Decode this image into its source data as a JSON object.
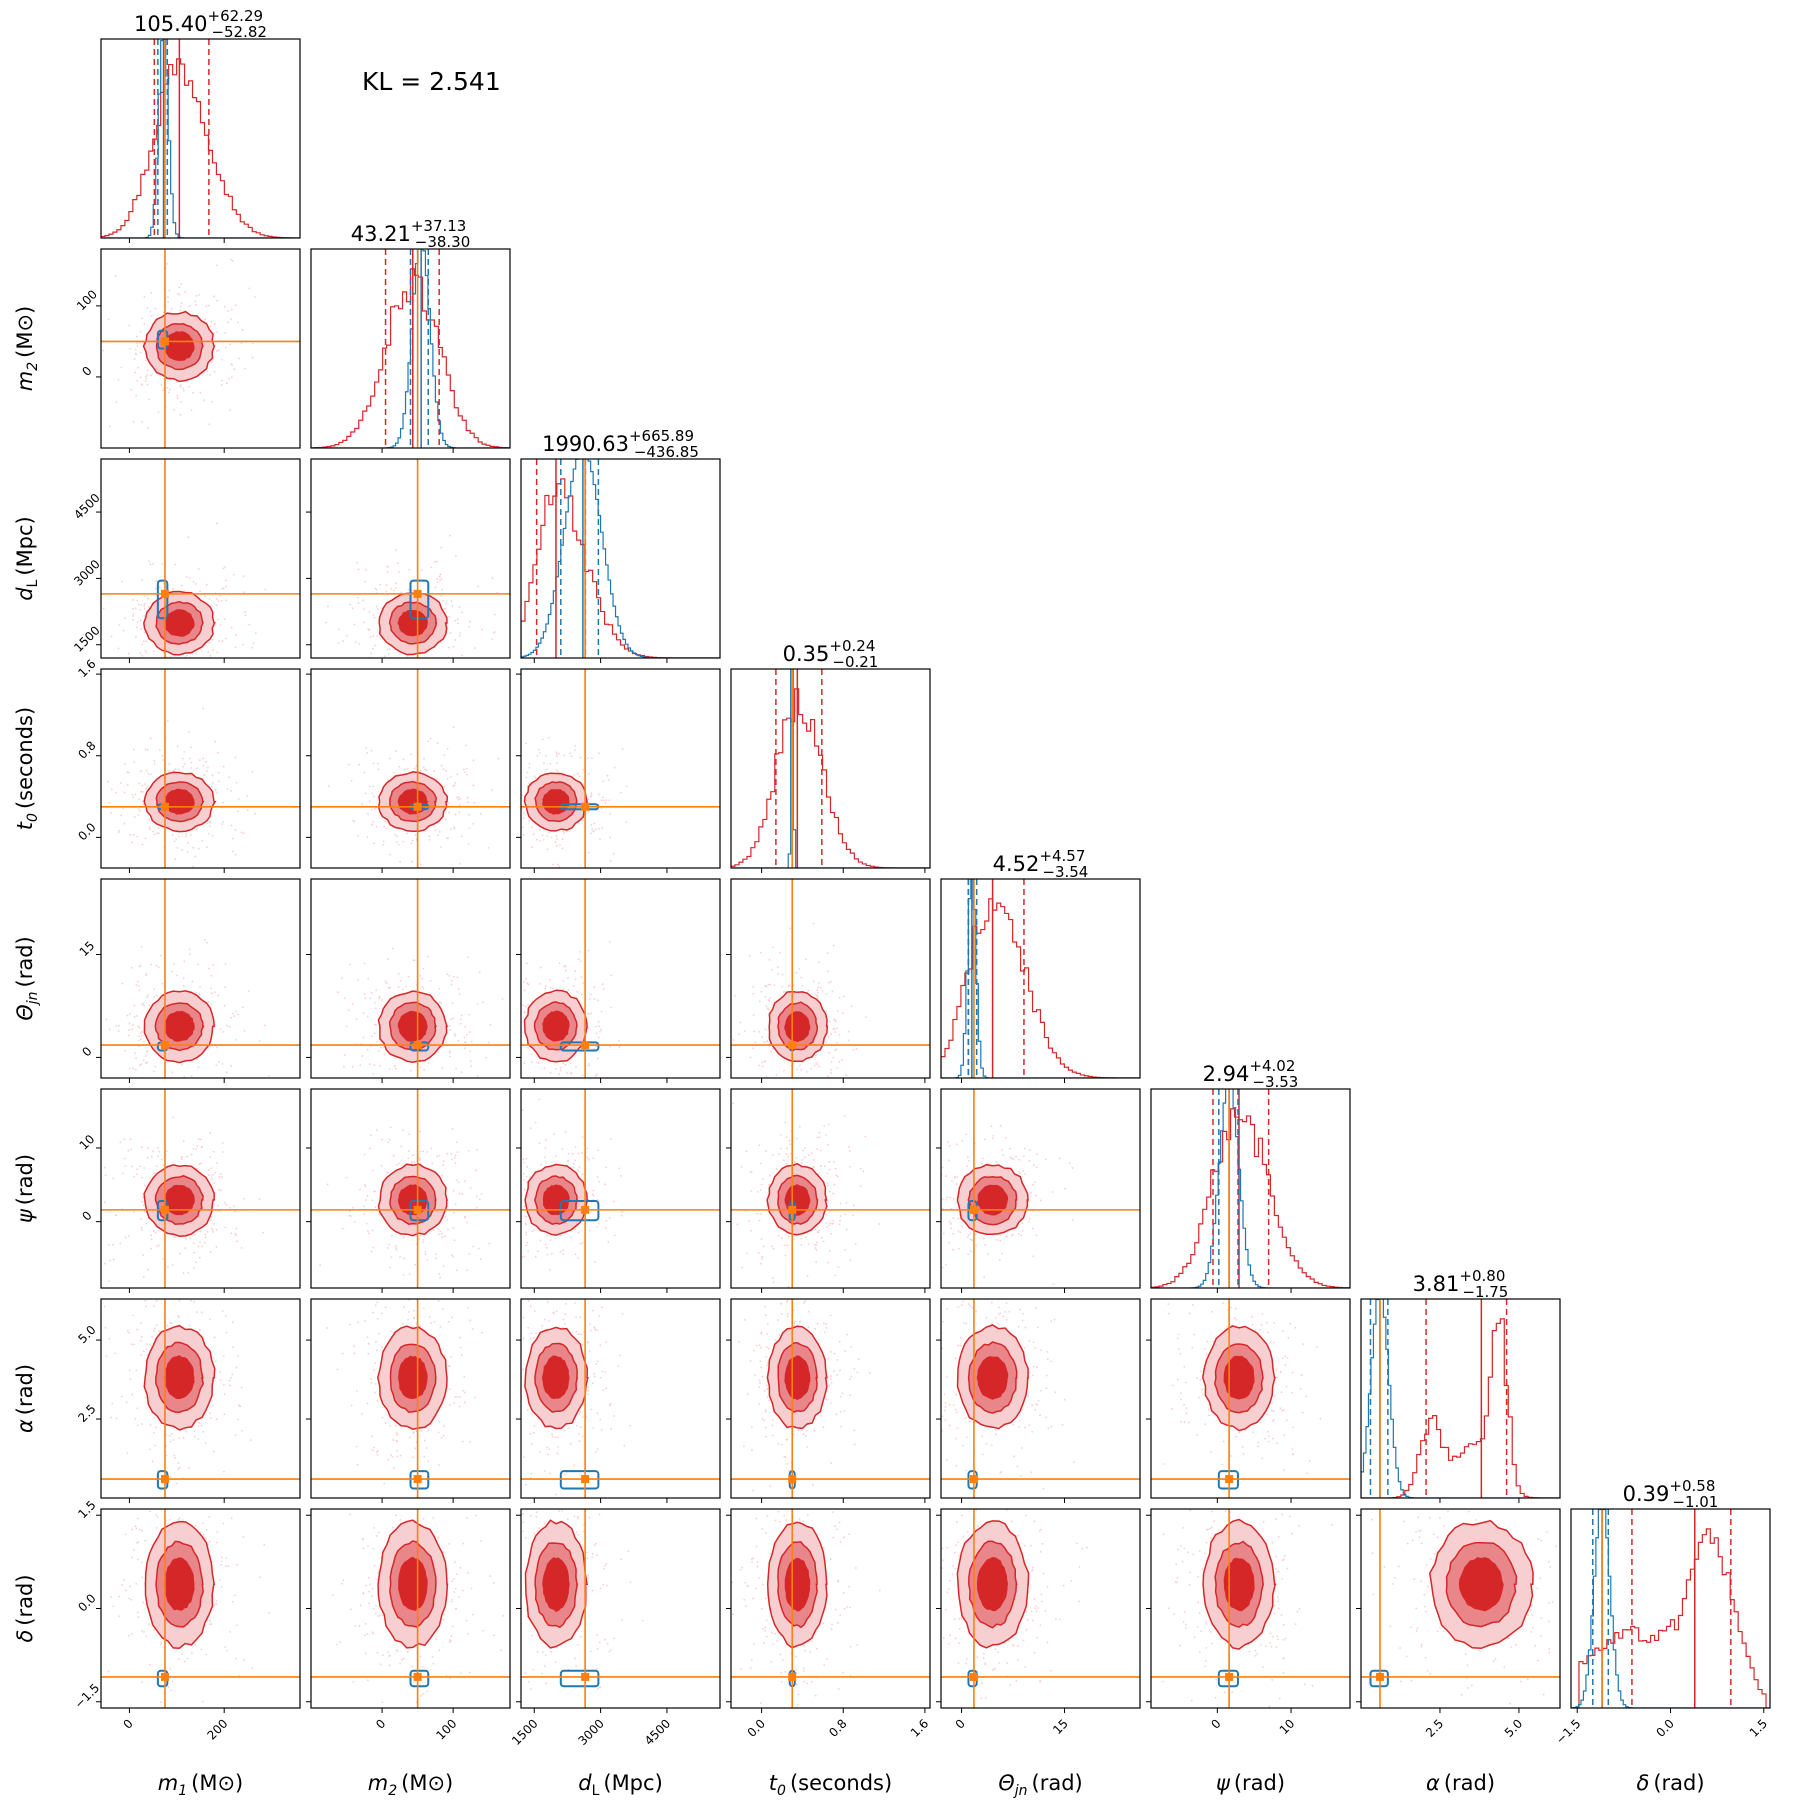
{
  "kl_text": "KL = 2.541",
  "colors": {
    "red": "#d62728",
    "red_mid": "#e8868a",
    "red_light": "#f7cfd1",
    "blue": "#1f77b4",
    "orange": "#ff7f0e"
  },
  "chart_data": {
    "type": "corner",
    "parameters": [
      {
        "key": "m1",
        "label_base": "m",
        "label_sub": "1",
        "unit": "(M⊙)",
        "range": [
          -60,
          360
        ],
        "ticks": [
          0,
          200
        ],
        "tick_labels": [
          "0",
          "200"
        ],
        "truth": 75,
        "title": {
          "median": "105.40",
          "plus": "+62.29",
          "minus": "−52.82"
        },
        "quantiles": {
          "red": [
            52.58,
            105.4,
            167.69
          ],
          "blue": [
            60,
            72,
            80
          ]
        }
      },
      {
        "key": "m2",
        "label_base": "m",
        "label_sub": "2",
        "unit": "(M⊙)",
        "range": [
          -100,
          180
        ],
        "ticks": [
          0,
          100
        ],
        "tick_labels": [
          "0",
          "100"
        ],
        "truth": 50,
        "title": {
          "median": "43.21",
          "plus": "+37.13",
          "minus": "−38.30"
        },
        "quantiles": {
          "red": [
            4.91,
            43.21,
            80.34
          ],
          "blue": [
            40,
            55,
            65
          ]
        }
      },
      {
        "key": "dL",
        "label_base": "d",
        "label_sub": "L",
        "unit": "(Mpc)",
        "range": [
          1200,
          5700
        ],
        "ticks": [
          1500,
          3000,
          4500
        ],
        "tick_labels": [
          "1500",
          "3000",
          "4500"
        ],
        "truth": 2650,
        "title": {
          "median": "1990.63",
          "plus": "+665.89",
          "minus": "−436.85"
        },
        "quantiles": {
          "red": [
            1553.78,
            1990.63,
            2656.52
          ],
          "blue": [
            2100,
            2600,
            2950
          ]
        }
      },
      {
        "key": "t0",
        "label_base": "t",
        "label_sub": "0",
        "unit": "(seconds)",
        "range": [
          -0.3,
          1.65
        ],
        "ticks": [
          0.0,
          0.8,
          1.6
        ],
        "tick_labels": [
          "0.0",
          "0.8",
          "1.6"
        ],
        "truth": 0.3,
        "title": {
          "median": "0.35",
          "plus": "+0.24",
          "minus": "−0.21"
        },
        "quantiles": {
          "red": [
            0.14,
            0.35,
            0.59
          ],
          "blue": [
            0.3,
            0.3,
            0.3
          ]
        }
      },
      {
        "key": "theta",
        "label_base": "Θ",
        "label_sub": "jn",
        "unit": "(rad)",
        "range": [
          -3,
          26
        ],
        "ticks": [
          0,
          15
        ],
        "tick_labels": [
          "0",
          "15"
        ],
        "truth": 1.8,
        "title": {
          "median": "4.52",
          "plus": "+4.57",
          "minus": "−3.54"
        },
        "quantiles": {
          "red": [
            0.98,
            4.52,
            9.09
          ],
          "blue": [
            1.0,
            1.5,
            2.2
          ]
        }
      },
      {
        "key": "psi",
        "label_base": "ψ",
        "label_sub": "",
        "unit": "(rad)",
        "range": [
          -9,
          18
        ],
        "ticks": [
          0,
          10
        ],
        "tick_labels": [
          "0",
          "10"
        ],
        "truth": 1.6,
        "title": {
          "median": "2.94",
          "plus": "+4.02",
          "minus": "−3.53"
        },
        "quantiles": {
          "red": [
            -0.59,
            2.94,
            6.96
          ],
          "blue": [
            0.2,
            1.6,
            2.8
          ]
        }
      },
      {
        "key": "alpha",
        "label_base": "α",
        "label_sub": "",
        "unit": "(rad)",
        "range": [
          0.0,
          6.3
        ],
        "ticks": [
          2.5,
          5.0
        ],
        "tick_labels": [
          "2.5",
          "5.0"
        ],
        "truth": 0.6,
        "title": {
          "median": "3.81",
          "plus": "+0.80",
          "minus": "−1.75"
        },
        "quantiles": {
          "red": [
            2.06,
            3.81,
            4.61
          ],
          "blue": [
            0.3,
            0.6,
            0.85
          ]
        }
      },
      {
        "key": "delta",
        "label_base": "δ",
        "label_sub": "",
        "unit": "(rad)",
        "range": [
          -1.6,
          1.6
        ],
        "ticks": [
          -1.5,
          0.0,
          1.5
        ],
        "tick_labels": [
          "−1.5",
          "0.0",
          "1.5"
        ],
        "truth": -1.1,
        "title": {
          "median": "0.39",
          "plus": "+0.58",
          "minus": "−1.01"
        },
        "quantiles": {
          "red": [
            -0.62,
            0.39,
            0.97
          ],
          "blue": [
            -1.25,
            -1.1,
            -1.0
          ]
        }
      }
    ],
    "kl": 2.541
  }
}
